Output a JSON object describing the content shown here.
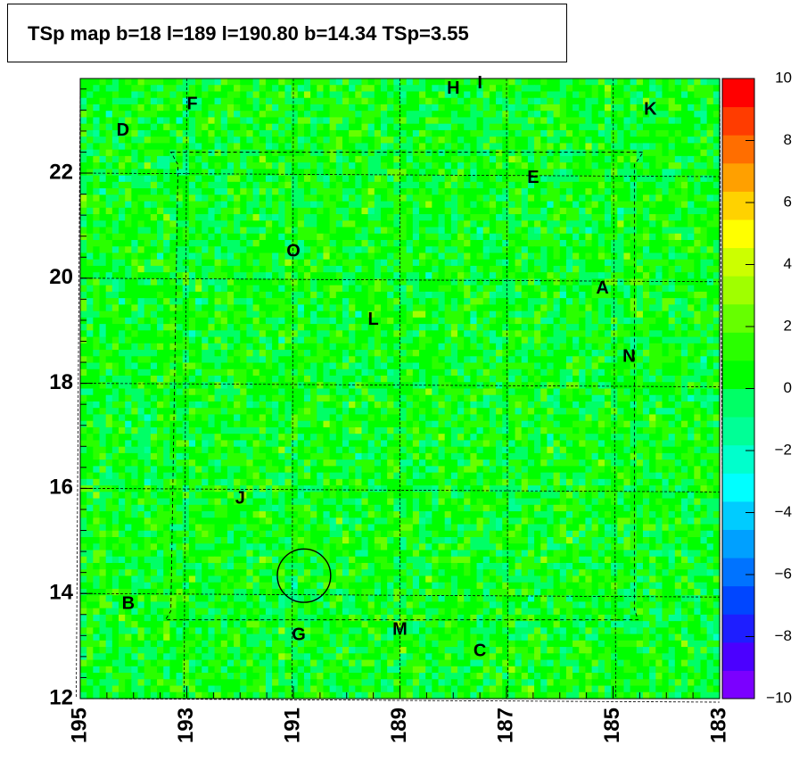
{
  "title": "TSp map b=18 l=189 l=190.80 b=14.34 TSp=3.55",
  "chart_data": {
    "type": "heatmap",
    "title": "TSp map b=18 l=189 l=190.80 b=14.34 TSp=3.55",
    "xlabel": "",
    "ylabel": "",
    "xlim": [
      195,
      183
    ],
    "ylim": [
      12,
      23.8
    ],
    "x_ticks": [
      "195",
      "193",
      "191",
      "189",
      "187",
      "185",
      "183"
    ],
    "y_ticks": [
      "12",
      "14",
      "16",
      "18",
      "20",
      "22"
    ],
    "colorbar": {
      "range": [
        -10,
        10
      ],
      "ticks": [
        "10",
        "8",
        "6",
        "4",
        "2",
        "0",
        "−2",
        "−4",
        "−6",
        "−8",
        "−10"
      ],
      "colors": [
        "#7b00ff",
        "#4b00ff",
        "#1e1eff",
        "#0046ff",
        "#0073ff",
        "#00a0ff",
        "#00ccff",
        "#00ffff",
        "#00ffcc",
        "#00ff96",
        "#00ff66",
        "#00ff00",
        "#2aff00",
        "#66ff00",
        "#a0ff00",
        "#ccff00",
        "#ffff00",
        "#ffd200",
        "#ffa000",
        "#ff6e00",
        "#ff3c00",
        "#ff0000"
      ]
    },
    "background_level": 0.5,
    "marker": {
      "type": "circle",
      "l": 190.8,
      "b": 14.34,
      "radius_deg": 0.5
    },
    "sources": [
      {
        "label": "A",
        "l": 185.2,
        "b": 19.8
      },
      {
        "label": "B",
        "l": 194.1,
        "b": 13.8
      },
      {
        "label": "C",
        "l": 187.5,
        "b": 12.9
      },
      {
        "label": "D",
        "l": 194.2,
        "b": 22.8
      },
      {
        "label": "E",
        "l": 186.5,
        "b": 21.9
      },
      {
        "label": "F",
        "l": 192.9,
        "b": 23.3
      },
      {
        "label": "G",
        "l": 190.9,
        "b": 13.2
      },
      {
        "label": "H",
        "l": 188.0,
        "b": 23.6
      },
      {
        "label": "I",
        "l": 187.5,
        "b": 23.7
      },
      {
        "label": "J",
        "l": 192.0,
        "b": 15.8
      },
      {
        "label": "K",
        "l": 184.3,
        "b": 23.2
      },
      {
        "label": "L",
        "l": 189.5,
        "b": 19.2
      },
      {
        "label": "M",
        "l": 189.0,
        "b": 13.3
      },
      {
        "label": "N",
        "l": 184.7,
        "b": 18.5
      },
      {
        "label": "O",
        "l": 191.0,
        "b": 20.5
      }
    ]
  }
}
